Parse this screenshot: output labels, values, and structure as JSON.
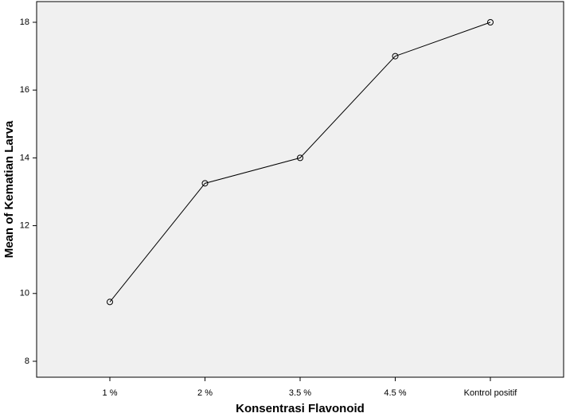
{
  "chart_data": {
    "type": "line",
    "x_label": "Konsentrasi Flavonoid",
    "y_label": "Mean of Kematian Larva",
    "categories": [
      "1 %",
      "2 %",
      "3.5 %",
      "4.5 %",
      "Kontrol positif"
    ],
    "values": [
      9.75,
      13.25,
      14,
      17,
      18
    ],
    "color": "#000000",
    "ylim": [
      7.53,
      18.61
    ],
    "yticks": [
      8,
      10,
      12,
      14,
      16,
      18
    ],
    "grid": false
  }
}
